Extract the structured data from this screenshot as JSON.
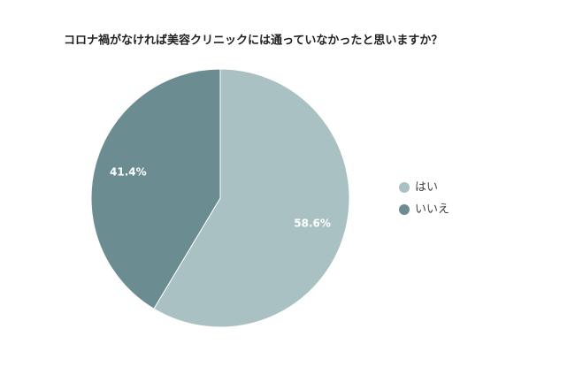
{
  "chart_data": {
    "type": "pie",
    "title": "コロナ禍がなければ美容クリニックには通っていなかったと思いますか？",
    "categories": [
      "はい",
      "いいえ"
    ],
    "values": [
      58.6,
      41.4
    ],
    "value_labels": [
      "58.6%",
      "41.4%"
    ],
    "colors": [
      "#a9c1c2",
      "#6b8c91"
    ],
    "legend": "right"
  }
}
